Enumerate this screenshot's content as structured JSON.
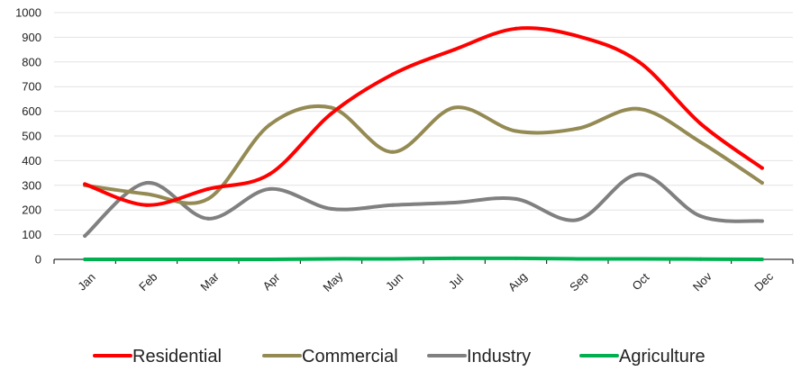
{
  "chart_data": {
    "type": "line",
    "smooth": true,
    "categories": [
      "Jan",
      "Feb",
      "Mar",
      "Apr",
      "May",
      "Jun",
      "Jul",
      "Aug",
      "Sep",
      "Oct",
      "Nov",
      "Dec"
    ],
    "ylim": [
      0,
      1000
    ],
    "y_ticks": [
      0,
      100,
      200,
      300,
      400,
      500,
      600,
      700,
      800,
      900,
      1000
    ],
    "grid": "horizontal",
    "legend_position": "bottom",
    "series": [
      {
        "name": "Residential",
        "color": "#ff0000",
        "values": [
          305,
          220,
          285,
          345,
          590,
          750,
          850,
          935,
          905,
          800,
          550,
          370
        ]
      },
      {
        "name": "Commercial",
        "color": "#948a54",
        "values": [
          300,
          265,
          245,
          545,
          615,
          435,
          615,
          520,
          530,
          610,
          475,
          310
        ]
      },
      {
        "name": "Industry",
        "color": "#808080",
        "values": [
          95,
          310,
          165,
          285,
          205,
          220,
          230,
          245,
          160,
          345,
          175,
          155
        ]
      },
      {
        "name": "Agriculture",
        "color": "#00b050",
        "values": [
          0,
          0,
          0,
          0,
          2,
          2,
          4,
          4,
          2,
          2,
          1,
          0
        ]
      }
    ]
  }
}
